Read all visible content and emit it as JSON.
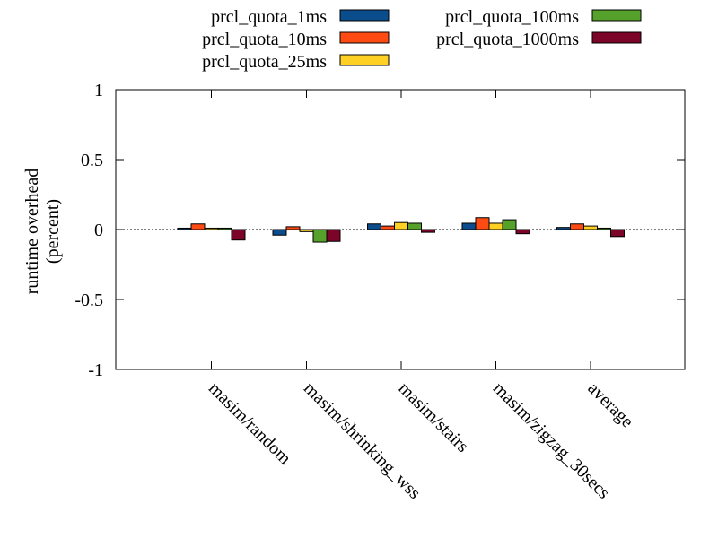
{
  "chart_data": {
    "type": "bar",
    "ylabel_lines": [
      "runtime overhead",
      "(percent)"
    ],
    "ylim": [
      -1,
      1
    ],
    "yticks": [
      "1",
      "0.5",
      "0",
      "-0.5",
      "-1"
    ],
    "grid": false,
    "legend_position": "top",
    "categories": [
      "masim/random",
      "masim/shrinking_wss",
      "masim/stairs",
      "masim/zigzag_30secs",
      "average"
    ],
    "series": [
      {
        "name": "prcl_quota_1ms",
        "color": "#0b4c8c",
        "values": [
          0.01,
          -0.04,
          0.04,
          0.045,
          0.015
        ]
      },
      {
        "name": "prcl_quota_10ms",
        "color": "#fe4a13",
        "values": [
          0.04,
          0.02,
          0.025,
          0.085,
          0.04
        ]
      },
      {
        "name": "prcl_quota_25ms",
        "color": "#fdd023",
        "values": [
          0.01,
          -0.015,
          0.05,
          0.045,
          0.025
        ]
      },
      {
        "name": "prcl_quota_100ms",
        "color": "#55a12b",
        "values": [
          0.01,
          -0.09,
          0.045,
          0.07,
          0.01
        ]
      },
      {
        "name": "prcl_quota_1000ms",
        "color": "#7c0428",
        "values": [
          -0.075,
          -0.085,
          -0.02,
          -0.03,
          -0.05
        ]
      }
    ]
  }
}
